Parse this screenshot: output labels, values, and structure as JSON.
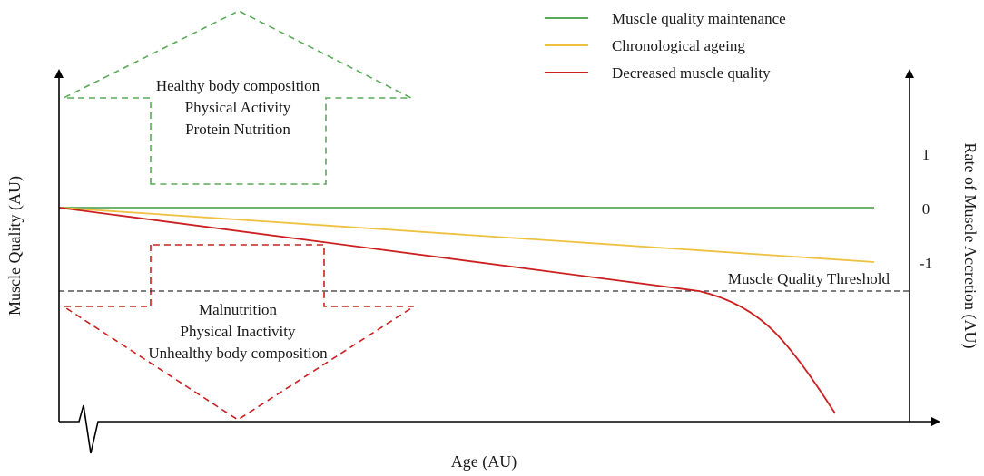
{
  "legend": [
    {
      "label": "Muscle quality maintenance",
      "color": "#5aa95a"
    },
    {
      "label": "Chronological ageing",
      "color": "#f0c040"
    },
    {
      "label": "Decreased muscle quality",
      "color": "#cc2020"
    }
  ],
  "axes": {
    "x_label": "Age (AU)",
    "y_left_label": "Muscle Quality (AU)",
    "y_right_label": "Rate of Muscle Accretion (AU)",
    "right_ticks": [
      "1",
      "0",
      "-1"
    ]
  },
  "threshold_label": "Muscle Quality Threshold",
  "up_arrow": {
    "color": "#5aa95a",
    "lines": [
      "Healthy body composition",
      "Physical Activity",
      "Protein Nutrition"
    ]
  },
  "down_arrow": {
    "color": "#cc2020",
    "lines": [
      "Malnutrition",
      "Physical Inactivity",
      "Unhealthy body composition"
    ]
  },
  "threshold_color": "#333333"
}
